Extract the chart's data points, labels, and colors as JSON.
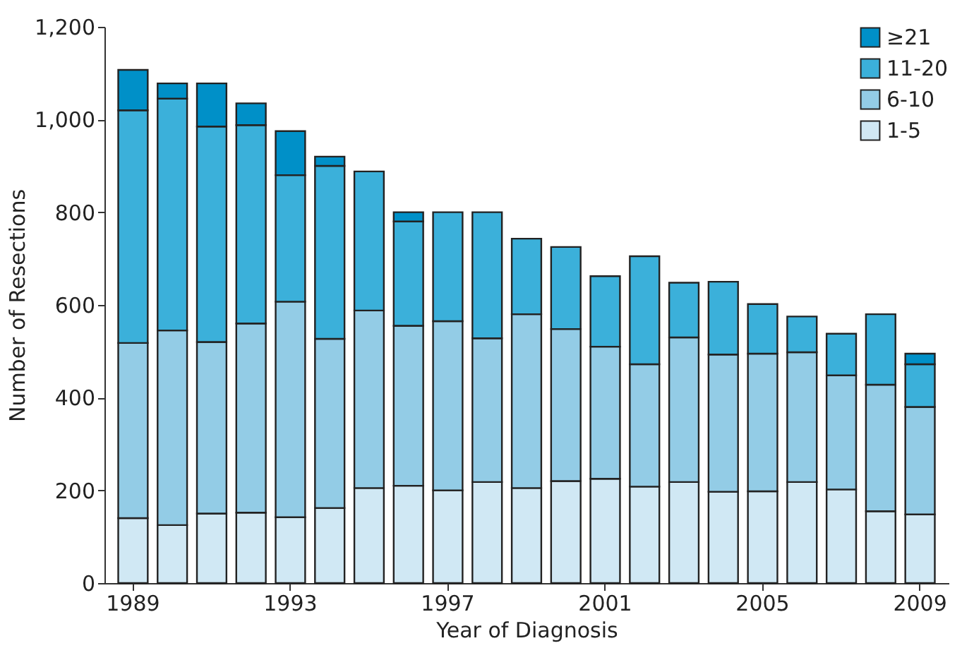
{
  "chart_data": {
    "type": "bar",
    "stacked": true,
    "xlabel": "Year of Diagnosis",
    "ylabel": "Number of Resections",
    "categories": [
      "1989",
      null,
      null,
      null,
      "1993",
      null,
      null,
      null,
      "1997",
      null,
      null,
      null,
      "2001",
      null,
      null,
      null,
      "2005",
      null,
      null,
      null,
      "2009"
    ],
    "series": [
      {
        "name": "1-5",
        "color": "#d0e8f4",
        "values": [
          140,
          125,
          150,
          152,
          142,
          162,
          205,
          210,
          200,
          218,
          205,
          220,
          225,
          208,
          218,
          197,
          198,
          218,
          202,
          155,
          148
        ]
      },
      {
        "name": "6-10",
        "color": "#93cce6",
        "values": [
          378,
          420,
          370,
          408,
          465,
          365,
          383,
          345,
          365,
          310,
          375,
          328,
          285,
          264,
          312,
          296,
          297,
          280,
          246,
          273,
          232
        ]
      },
      {
        "name": "11-20",
        "color": "#3bb0da",
        "values": [
          502,
          500,
          465,
          428,
          273,
          373,
          300,
          225,
          235,
          272,
          163,
          177,
          152,
          233,
          118,
          157,
          107,
          77,
          90,
          152,
          92
        ]
      },
      {
        "name": "≥21",
        "color": "#0090c8",
        "values": [
          87,
          33,
          93,
          47,
          95,
          20,
          null,
          20,
          null,
          null,
          null,
          null,
          null,
          null,
          null,
          null,
          null,
          null,
          null,
          null,
          23
        ]
      }
    ],
    "ylim": [
      0,
      1200
    ],
    "yticks": [
      0,
      {
        "value": 200,
        "label": "200"
      },
      {
        "value": 400,
        "label": "400"
      },
      {
        "value": 600,
        "label": "600"
      },
      {
        "value": 800,
        "label": "800"
      },
      {
        "value": 1000,
        "label": "1,000"
      },
      {
        "value": 1200,
        "label": "1,200"
      }
    ],
    "grid": false,
    "legend": "top right"
  }
}
